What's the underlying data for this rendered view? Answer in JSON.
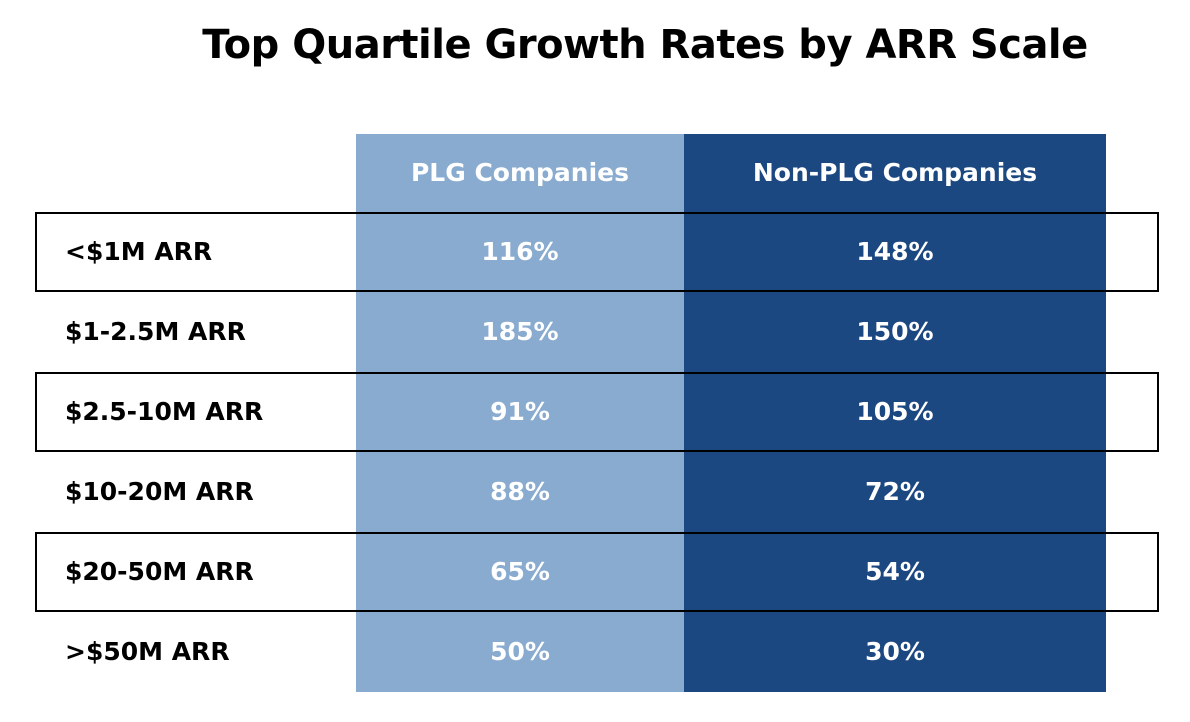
{
  "chart_data": {
    "type": "table",
    "title": "Top Quartile Growth Rates by ARR Scale",
    "columns": [
      "PLG Companies",
      "Non-PLG Companies"
    ],
    "rows": [
      {
        "label": "<$1M ARR",
        "values": [
          "116%",
          "148%"
        ]
      },
      {
        "label": "$1-2.5M ARR",
        "values": [
          "185%",
          "150%"
        ]
      },
      {
        "label": "$2.5-10M ARR",
        "values": [
          "91%",
          "105%"
        ]
      },
      {
        "label": "$10-20M ARR",
        "values": [
          "88%",
          "72%"
        ]
      },
      {
        "label": "$20-50M ARR",
        "values": [
          "65%",
          "54%"
        ]
      },
      {
        "label": ">$50M ARR",
        "values": [
          "50%",
          "30%"
        ]
      }
    ],
    "colors": {
      "plg": "#88abcf",
      "non_plg": "#1c4882"
    }
  }
}
